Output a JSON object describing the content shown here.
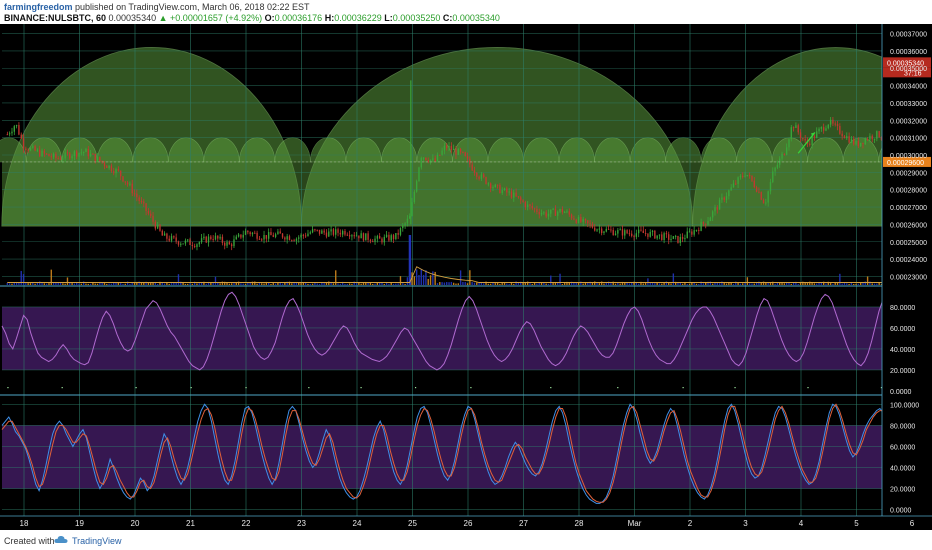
{
  "header": {
    "author": "farmingfreedom",
    "published": "published on TradingView.com, March 06, 2018 02:22 EST",
    "symbol": "BINANCE:NULSBTC, 60",
    "last": "0.00035340",
    "change": "+0.00001657 (+4.92%)",
    "open_label": "O:",
    "open": "0.00036176",
    "high_label": "H:",
    "high": "0.00036229",
    "low_label": "L:",
    "low": "0.00035250",
    "close_label": "C:",
    "close": "0.00035340"
  },
  "footer": {
    "created_with": "Created with",
    "brand": "TradingView"
  },
  "colors": {
    "background": "#000000",
    "grid": "#2e7f6a",
    "bull": "#3aa53a",
    "bear": "#c2382f",
    "arc_fill": "#5a9a3c",
    "oscillator_band": "#3c1a5a",
    "price_badge": "#b52a1f",
    "level_badge": "#e8821c",
    "volume": "#2233b8",
    "volume_up": "#c8821c"
  },
  "chart_data": [
    {
      "type": "candlestick",
      "title": "",
      "x_ticks": [
        "18",
        "19",
        "20",
        "21",
        "22",
        "23",
        "24",
        "25",
        "26",
        "27",
        "28",
        "Mar",
        "2",
        "3",
        "4",
        "5",
        "6"
      ],
      "y_ticks": [
        "0.00037000",
        "0.00036000",
        "0.00035000",
        "0.00034000",
        "0.00033000",
        "0.00032000",
        "0.00031000",
        "0.00030000",
        "0.00029000",
        "0.00028000",
        "0.00027000",
        "0.00026000",
        "0.00025000",
        "0.00024000",
        "0.00023000"
      ],
      "ylim": [
        0.0002245,
        0.0003755
      ],
      "last_price_label": "0.00035340",
      "countdown_label": "37:16",
      "level_label": "0.00029600",
      "level_value": 0.000296,
      "close_path": [
        [
          17.7,
          0.000312
        ],
        [
          17.85,
          0.000318
        ],
        [
          18.0,
          0.000305
        ],
        [
          18.3,
          0.000301
        ],
        [
          18.6,
          0.000298
        ],
        [
          18.9,
          0.000301
        ],
        [
          19.1,
          0.000302
        ],
        [
          19.4,
          0.000296
        ],
        [
          19.7,
          0.00029
        ],
        [
          19.9,
          0.000282
        ],
        [
          20.2,
          0.000268
        ],
        [
          20.5,
          0.000253
        ],
        [
          20.8,
          0.00025
        ],
        [
          21.1,
          0.000249
        ],
        [
          21.4,
          0.000253
        ],
        [
          21.7,
          0.000248
        ],
        [
          22.0,
          0.000256
        ],
        [
          22.3,
          0.000253
        ],
        [
          22.6,
          0.000254
        ],
        [
          22.9,
          0.000252
        ],
        [
          23.2,
          0.000256
        ],
        [
          23.5,
          0.000255
        ],
        [
          23.8,
          0.000256
        ],
        [
          24.1,
          0.000253
        ],
        [
          24.4,
          0.000251
        ],
        [
          24.7,
          0.000253
        ],
        [
          24.95,
          0.000264
        ],
        [
          25.15,
          0.0003
        ],
        [
          25.4,
          0.000296
        ],
        [
          25.6,
          0.000305
        ],
        [
          25.9,
          0.0003
        ],
        [
          26.2,
          0.000288
        ],
        [
          26.5,
          0.000281
        ],
        [
          26.8,
          0.000277
        ],
        [
          27.1,
          0.00027
        ],
        [
          27.4,
          0.000266
        ],
        [
          27.7,
          0.000268
        ],
        [
          28.0,
          0.000262
        ],
        [
          28.3,
          0.000258
        ],
        [
          28.6,
          0.000256
        ],
        [
          28.9,
          0.000255
        ],
        [
          29.2,
          0.000255
        ],
        [
          29.5,
          0.000253
        ],
        [
          29.8,
          0.000251
        ],
        [
          30.1,
          0.000257
        ],
        [
          30.3,
          0.000262
        ],
        [
          30.6,
          0.000275
        ],
        [
          30.8,
          0.000283
        ],
        [
          31.0,
          0.00029
        ],
        [
          31.2,
          0.000281
        ],
        [
          31.35,
          0.000272
        ],
        [
          31.5,
          0.00029
        ],
        [
          31.7,
          0.000302
        ],
        [
          31.85,
          0.000318
        ],
        [
          32.1,
          0.000306
        ],
        [
          32.3,
          0.000313
        ],
        [
          32.5,
          0.000319
        ],
        [
          32.8,
          0.000311
        ],
        [
          33.0,
          0.000306
        ],
        [
          33.2,
          0.00031
        ],
        [
          33.4,
          0.000312
        ],
        [
          33.6,
          0.000305
        ],
        [
          33.8,
          0.000312
        ],
        [
          34.0,
          0.000325
        ],
        [
          34.2,
          0.000338
        ],
        [
          34.3,
          0.000333
        ],
        [
          34.45,
          0.000348
        ],
        [
          34.6,
          0.000358
        ],
        [
          34.7,
          0.000353
        ]
      ]
    },
    {
      "type": "line",
      "title": "",
      "y_ticks": [
        "80.0000",
        "60.0000",
        "40.0000",
        "20.0000",
        "0.0000"
      ],
      "ylim": [
        -2,
        100
      ],
      "band": [
        20,
        80
      ],
      "series": [
        {
          "values": [
            62,
            55,
            45,
            40,
            50,
            61,
            72,
            68,
            55,
            45,
            36,
            32,
            30,
            28,
            30,
            34,
            40,
            44,
            40,
            34,
            30,
            28,
            26,
            25,
            27,
            36,
            48,
            60,
            70,
            76,
            72,
            64,
            54,
            46,
            40,
            38,
            40,
            48,
            58,
            68,
            78,
            82,
            86,
            84,
            78,
            70,
            62,
            56,
            52,
            46,
            40,
            34,
            28,
            24,
            22,
            20,
            23,
            30,
            40,
            52,
            64,
            76,
            86,
            92,
            94,
            90,
            82,
            72,
            62,
            52,
            42,
            36,
            32,
            30,
            32,
            38,
            46,
            58,
            70,
            80,
            86,
            88,
            82,
            74,
            64,
            54,
            46,
            40,
            36,
            34,
            36,
            40,
            46,
            52,
            58,
            62,
            60,
            54,
            46,
            40,
            36,
            34,
            32,
            30,
            29,
            28,
            30,
            33,
            38,
            44,
            50,
            56,
            60,
            58,
            52,
            46,
            40,
            34,
            28,
            24,
            22,
            20,
            22,
            26,
            34,
            44,
            56,
            68,
            78,
            86,
            90,
            86,
            78,
            68,
            58,
            48,
            40,
            34,
            30,
            28,
            30,
            34,
            40,
            48,
            56,
            62,
            66,
            64,
            58,
            50,
            42,
            36,
            30,
            26,
            24,
            26,
            30,
            36,
            44,
            52,
            58,
            62,
            60,
            56,
            50,
            44,
            38,
            34,
            32,
            32,
            36,
            44,
            54,
            64,
            72,
            78,
            80,
            76,
            68,
            58,
            48,
            40,
            34,
            30,
            28,
            26,
            26,
            30,
            36,
            44,
            52,
            60,
            68,
            74,
            78,
            80,
            80,
            76,
            70,
            62,
            54,
            46,
            38,
            30,
            26,
            24,
            28,
            36,
            48,
            60,
            72,
            82,
            88,
            86,
            78,
            68,
            58,
            48,
            40,
            34,
            30,
            28,
            30,
            36,
            46,
            58,
            70,
            80,
            88,
            92,
            90,
            84,
            74,
            64,
            54,
            44,
            36,
            30,
            26,
            24,
            28,
            36,
            48,
            62,
            76,
            86,
            92,
            90,
            82,
            72,
            62,
            56,
            54,
            58,
            66,
            74,
            80,
            84,
            86,
            88,
            90,
            92,
            90,
            86,
            82
          ]
        }
      ]
    },
    {
      "type": "line",
      "title": "",
      "y_ticks": [
        "100.0000",
        "80.0000",
        "60.0000",
        "40.0000",
        "20.0000",
        "0.0000"
      ],
      "ylim": [
        -6,
        106
      ],
      "band": [
        20,
        80
      ],
      "series": [
        {
          "values": [
            80,
            84,
            88,
            82,
            74,
            70,
            64,
            58,
            48,
            36,
            24,
            18,
            28,
            42,
            58,
            72,
            80,
            84,
            80,
            72,
            66,
            60,
            66,
            72,
            76,
            68,
            54,
            40,
            28,
            20,
            26,
            36,
            48,
            40,
            30,
            22,
            16,
            12,
            10,
            14,
            22,
            30,
            26,
            18,
            22,
            32,
            46,
            60,
            72,
            66,
            52,
            40,
            30,
            24,
            30,
            40,
            54,
            70,
            84,
            94,
            100,
            96,
            84,
            68,
            52,
            38,
            28,
            24,
            32,
            46,
            64,
            82,
            96,
            98,
            92,
            80,
            66,
            52,
            40,
            30,
            24,
            30,
            44,
            62,
            80,
            94,
            98,
            94,
            82,
            68,
            56,
            46,
            40,
            44,
            54,
            66,
            76,
            70,
            56,
            42,
            30,
            22,
            16,
            12,
            10,
            12,
            18,
            28,
            40,
            54,
            68,
            78,
            84,
            76,
            62,
            48,
            36,
            28,
            24,
            30,
            42,
            58,
            74,
            88,
            96,
            98,
            92,
            80,
            66,
            52,
            40,
            32,
            28,
            34,
            46,
            62,
            78,
            90,
            98,
            96,
            86,
            72,
            58,
            46,
            36,
            28,
            24,
            26,
            32,
            40,
            50,
            58,
            64,
            60,
            52,
            44,
            38,
            34,
            32,
            36,
            44,
            56,
            70,
            84,
            94,
            98,
            92,
            80,
            64,
            50,
            38,
            28,
            20,
            14,
            10,
            8,
            6,
            6,
            8,
            12,
            20,
            32,
            48,
            64,
            80,
            92,
            100,
            96,
            86,
            72,
            60,
            50,
            44,
            48,
            56,
            68,
            80,
            90,
            96,
            92,
            80,
            66,
            52,
            40,
            30,
            22,
            16,
            12,
            10,
            14,
            22,
            34,
            50,
            68,
            84,
            96,
            100,
            94,
            82,
            68,
            54,
            42,
            34,
            30,
            32,
            40,
            52,
            66,
            80,
            92,
            98,
            96,
            88,
            76,
            64,
            52,
            42,
            34,
            28,
            24,
            26,
            34,
            46,
            62,
            78,
            92,
            100,
            98,
            90,
            78,
            66,
            56,
            50,
            54,
            62,
            72,
            80,
            86,
            90,
            94,
            96,
            92,
            86,
            80,
            74,
            70,
            66,
            60,
            56,
            62,
            70,
            78,
            86,
            92,
            88,
            80,
            72,
            66,
            62,
            60,
            62,
            66
          ]
        },
        {
          "values": [
            76,
            80,
            84,
            84,
            78,
            72,
            66,
            60,
            52,
            42,
            30,
            22,
            24,
            34,
            48,
            62,
            74,
            80,
            80,
            76,
            70,
            64,
            64,
            68,
            72,
            70,
            60,
            48,
            36,
            26,
            24,
            30,
            40,
            42,
            36,
            28,
            22,
            16,
            12,
            12,
            18,
            26,
            28,
            22,
            20,
            26,
            38,
            52,
            64,
            68,
            60,
            48,
            38,
            30,
            28,
            34,
            46,
            60,
            74,
            86,
            94,
            96,
            90,
            78,
            62,
            48,
            36,
            28,
            28,
            38,
            54,
            72,
            88,
            96,
            94,
            86,
            74,
            60,
            48,
            38,
            30,
            28,
            36,
            52,
            70,
            86,
            94,
            94,
            86,
            74,
            62,
            52,
            44,
            42,
            48,
            58,
            68,
            72,
            64,
            50,
            38,
            28,
            20,
            16,
            12,
            11,
            14,
            22,
            32,
            46,
            60,
            72,
            80,
            80,
            70,
            56,
            44,
            34,
            28,
            28,
            36,
            50,
            66,
            80,
            90,
            96,
            94,
            86,
            74,
            60,
            48,
            38,
            32,
            32,
            40,
            54,
            70,
            84,
            94,
            96,
            90,
            78,
            64,
            52,
            42,
            34,
            28,
            26,
            28,
            36,
            44,
            52,
            60,
            62,
            58,
            50,
            44,
            38,
            34,
            34,
            40,
            50,
            62,
            76,
            88,
            96,
            96,
            88,
            74,
            58,
            44,
            34,
            26,
            18,
            14,
            10,
            8,
            7,
            7,
            10,
            16,
            26,
            40,
            56,
            72,
            86,
            96,
            98,
            92,
            80,
            68,
            56,
            48,
            46,
            52,
            62,
            74,
            84,
            92,
            94,
            86,
            74,
            60,
            46,
            36,
            28,
            20,
            14,
            12,
            12,
            18,
            28,
            42,
            58,
            76,
            90,
            98,
            98,
            88,
            76,
            62,
            50,
            40,
            34,
            32,
            36,
            46,
            58,
            72,
            86,
            94,
            98,
            92,
            82,
            70,
            58,
            48,
            38,
            32,
            26,
            26,
            30,
            40,
            54,
            70,
            86,
            96,
            100,
            94,
            84,
            72,
            62,
            54,
            52,
            58,
            66,
            76,
            82,
            88,
            92,
            94,
            94,
            90,
            84,
            78,
            72,
            68,
            64,
            60,
            58,
            64,
            72,
            80,
            88,
            90,
            86,
            78,
            70,
            64,
            62,
            60,
            62
          ]
        }
      ]
    }
  ]
}
